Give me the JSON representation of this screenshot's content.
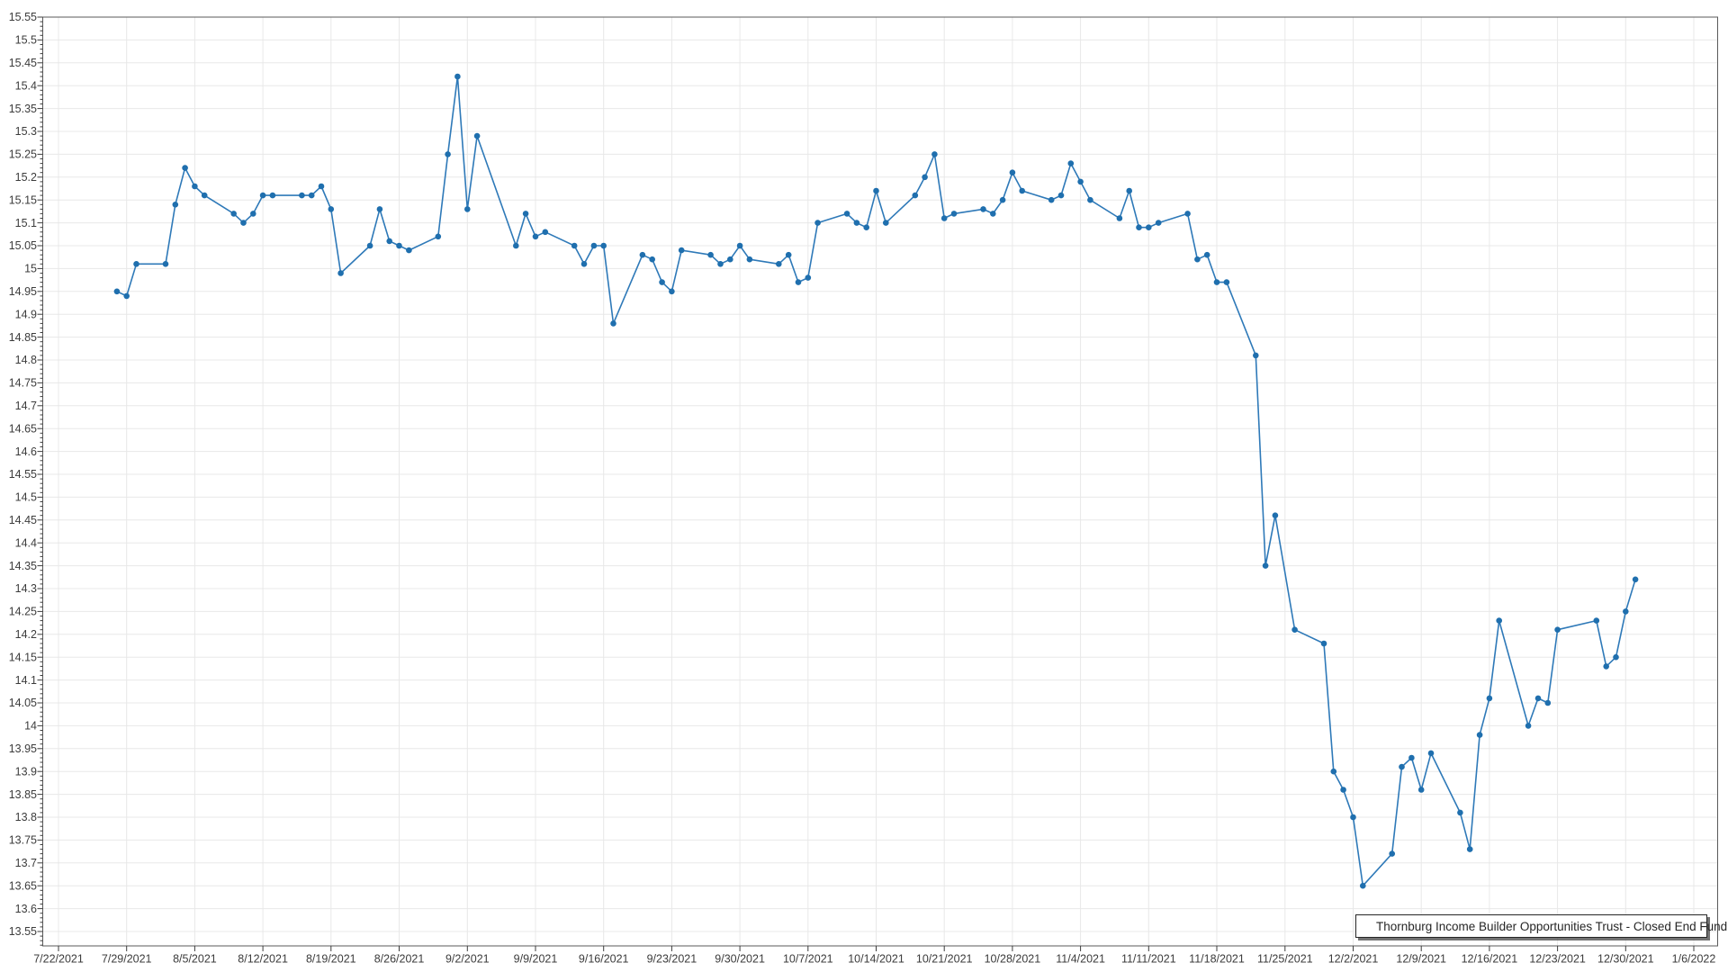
{
  "legend": {
    "label": "Thornburg Income Builder Opportunities Trust - Closed End Fund",
    "position": "bottom-right"
  },
  "colors": {
    "line": "#2E79B8",
    "marker": "#1F6FAE",
    "grid": "#E8E8E8",
    "axis": "#5A5A5A",
    "tick": "#3C3C3C",
    "text": "#3C3C3C"
  },
  "chart_data": {
    "type": "line",
    "title": "",
    "xlabel": "",
    "ylabel": "",
    "grid": true,
    "legend_position": "bottom-right",
    "x_axis": {
      "start": "7/22/2021",
      "end": "1/6/2022",
      "tick_interval_days": 7,
      "tick_labels": [
        "7/22/2021",
        "7/29/2021",
        "8/5/2021",
        "8/12/2021",
        "8/19/2021",
        "8/26/2021",
        "9/2/2021",
        "9/9/2021",
        "9/16/2021",
        "9/23/2021",
        "9/30/2021",
        "10/7/2021",
        "10/14/2021",
        "10/21/2021",
        "10/28/2021",
        "11/4/2021",
        "11/11/2021",
        "11/18/2021",
        "11/25/2021",
        "12/2/2021",
        "12/9/2021",
        "12/16/2021",
        "12/23/2021",
        "12/30/2021",
        "1/6/2022"
      ]
    },
    "y_axis": {
      "min": 13.55,
      "max": 15.55,
      "major_step": 0.05,
      "minor_step": 0.01,
      "tick_labels": [
        "15.55",
        "15.5",
        "15.45",
        "15.4",
        "15.35",
        "15.3",
        "15.25",
        "15.2",
        "15.15",
        "15.1",
        "15.05",
        "15",
        "14.95",
        "14.9",
        "14.85",
        "14.8",
        "14.75",
        "14.7",
        "14.65",
        "14.6",
        "14.55",
        "14.5",
        "14.45",
        "14.4",
        "14.35",
        "14.3",
        "14.25",
        "14.2",
        "14.15",
        "14.1",
        "14.05",
        "14",
        "13.95",
        "13.9",
        "13.85",
        "13.8",
        "13.75",
        "13.7",
        "13.65",
        "13.6",
        "13.55"
      ]
    },
    "series": [
      {
        "name": "Thornburg Income Builder Opportunities Trust - Closed End Fund",
        "color": "#2E79B8",
        "marker": "circle",
        "points": [
          [
            "7/28/2021",
            14.95
          ],
          [
            "7/29/2021",
            14.94
          ],
          [
            "7/30/2021",
            15.01
          ],
          [
            "8/2/2021",
            15.01
          ],
          [
            "8/3/2021",
            15.14
          ],
          [
            "8/4/2021",
            15.22
          ],
          [
            "8/5/2021",
            15.18
          ],
          [
            "8/6/2021",
            15.16
          ],
          [
            "8/9/2021",
            15.12
          ],
          [
            "8/10/2021",
            15.1
          ],
          [
            "8/11/2021",
            15.12
          ],
          [
            "8/12/2021",
            15.16
          ],
          [
            "8/13/2021",
            15.16
          ],
          [
            "8/16/2021",
            15.16
          ],
          [
            "8/17/2021",
            15.16
          ],
          [
            "8/18/2021",
            15.18
          ],
          [
            "8/19/2021",
            15.13
          ],
          [
            "8/20/2021",
            14.99
          ],
          [
            "8/23/2021",
            15.05
          ],
          [
            "8/24/2021",
            15.13
          ],
          [
            "8/25/2021",
            15.06
          ],
          [
            "8/26/2021",
            15.05
          ],
          [
            "8/27/2021",
            15.04
          ],
          [
            "8/30/2021",
            15.07
          ],
          [
            "8/31/2021",
            15.25
          ],
          [
            "9/1/2021",
            15.42
          ],
          [
            "9/2/2021",
            15.13
          ],
          [
            "9/3/2021",
            15.29
          ],
          [
            "9/7/2021",
            15.05
          ],
          [
            "9/8/2021",
            15.12
          ],
          [
            "9/9/2021",
            15.07
          ],
          [
            "9/10/2021",
            15.08
          ],
          [
            "9/13/2021",
            15.05
          ],
          [
            "9/14/2021",
            15.01
          ],
          [
            "9/15/2021",
            15.05
          ],
          [
            "9/16/2021",
            15.05
          ],
          [
            "9/17/2021",
            14.88
          ],
          [
            "9/20/2021",
            15.03
          ],
          [
            "9/21/2021",
            15.02
          ],
          [
            "9/22/2021",
            14.97
          ],
          [
            "9/23/2021",
            14.95
          ],
          [
            "9/24/2021",
            15.04
          ],
          [
            "9/27/2021",
            15.03
          ],
          [
            "9/28/2021",
            15.01
          ],
          [
            "9/29/2021",
            15.02
          ],
          [
            "9/30/2021",
            15.05
          ],
          [
            "10/1/2021",
            15.02
          ],
          [
            "10/4/2021",
            15.01
          ],
          [
            "10/5/2021",
            15.03
          ],
          [
            "10/6/2021",
            14.97
          ],
          [
            "10/7/2021",
            14.98
          ],
          [
            "10/8/2021",
            15.1
          ],
          [
            "10/11/2021",
            15.12
          ],
          [
            "10/12/2021",
            15.1
          ],
          [
            "10/13/2021",
            15.09
          ],
          [
            "10/14/2021",
            15.17
          ],
          [
            "10/15/2021",
            15.1
          ],
          [
            "10/18/2021",
            15.16
          ],
          [
            "10/19/2021",
            15.2
          ],
          [
            "10/20/2021",
            15.25
          ],
          [
            "10/21/2021",
            15.11
          ],
          [
            "10/22/2021",
            15.12
          ],
          [
            "10/25/2021",
            15.13
          ],
          [
            "10/26/2021",
            15.12
          ],
          [
            "10/27/2021",
            15.15
          ],
          [
            "10/28/2021",
            15.21
          ],
          [
            "10/29/2021",
            15.17
          ],
          [
            "11/1/2021",
            15.15
          ],
          [
            "11/2/2021",
            15.16
          ],
          [
            "11/3/2021",
            15.23
          ],
          [
            "11/4/2021",
            15.19
          ],
          [
            "11/5/2021",
            15.15
          ],
          [
            "11/8/2021",
            15.11
          ],
          [
            "11/9/2021",
            15.17
          ],
          [
            "11/10/2021",
            15.09
          ],
          [
            "11/11/2021",
            15.09
          ],
          [
            "11/12/2021",
            15.1
          ],
          [
            "11/15/2021",
            15.12
          ],
          [
            "11/16/2021",
            15.02
          ],
          [
            "11/17/2021",
            15.03
          ],
          [
            "11/18/2021",
            14.97
          ],
          [
            "11/19/2021",
            14.97
          ],
          [
            "11/22/2021",
            14.81
          ],
          [
            "11/23/2021",
            14.35
          ],
          [
            "11/24/2021",
            14.46
          ],
          [
            "11/26/2021",
            14.21
          ],
          [
            "11/29/2021",
            14.18
          ],
          [
            "11/30/2021",
            13.9
          ],
          [
            "12/1/2021",
            13.86
          ],
          [
            "12/2/2021",
            13.8
          ],
          [
            "12/3/2021",
            13.65
          ],
          [
            "12/6/2021",
            13.72
          ],
          [
            "12/7/2021",
            13.91
          ],
          [
            "12/8/2021",
            13.93
          ],
          [
            "12/9/2021",
            13.86
          ],
          [
            "12/10/2021",
            13.94
          ],
          [
            "12/13/2021",
            13.81
          ],
          [
            "12/14/2021",
            13.73
          ],
          [
            "12/15/2021",
            13.98
          ],
          [
            "12/16/2021",
            14.06
          ],
          [
            "12/17/2021",
            14.23
          ],
          [
            "12/20/2021",
            14.0
          ],
          [
            "12/21/2021",
            14.06
          ],
          [
            "12/22/2021",
            14.05
          ],
          [
            "12/23/2021",
            14.21
          ],
          [
            "12/27/2021",
            14.23
          ],
          [
            "12/28/2021",
            14.13
          ],
          [
            "12/29/2021",
            14.15
          ],
          [
            "12/30/2021",
            14.25
          ],
          [
            "12/31/2021",
            14.32
          ]
        ]
      }
    ]
  }
}
